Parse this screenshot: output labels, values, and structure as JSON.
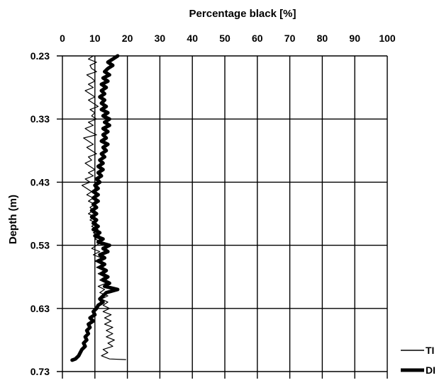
{
  "chart_data": {
    "type": "line",
    "title": "Percentage black [%]",
    "xlabel": "Percentage black [%]",
    "ylabel": "Depth (m)",
    "x_axis_position": "top",
    "y_axis_inverted": true,
    "xlim": [
      0,
      100
    ],
    "ylim": [
      0.23,
      0.73
    ],
    "x_ticks": [
      0,
      10,
      20,
      30,
      40,
      50,
      60,
      70,
      80,
      90,
      100
    ],
    "x_tick_labels": [
      "0",
      "10",
      "20",
      "30",
      "40",
      "50",
      "60",
      "70",
      "80",
      "90",
      "100"
    ],
    "y_ticks": [
      0.23,
      0.33,
      0.43,
      0.53,
      0.63,
      0.73
    ],
    "y_tick_labels": [
      "0.23",
      "0.33",
      "0.43",
      "0.53",
      "0.63",
      "0.73"
    ],
    "grid": true,
    "legend_position": "bottom-right",
    "series": [
      {
        "name": "TI",
        "color": "#000000",
        "style": "thin",
        "points": [
          [
            9.5,
            0.23
          ],
          [
            8.0,
            0.235
          ],
          [
            10.5,
            0.24
          ],
          [
            8.5,
            0.245
          ],
          [
            9.0,
            0.25
          ],
          [
            10.5,
            0.255
          ],
          [
            7.5,
            0.26
          ],
          [
            9.0,
            0.265
          ],
          [
            10.0,
            0.27
          ],
          [
            8.0,
            0.275
          ],
          [
            9.5,
            0.28
          ],
          [
            7.0,
            0.285
          ],
          [
            8.5,
            0.29
          ],
          [
            10.0,
            0.295
          ],
          [
            8.0,
            0.3
          ],
          [
            9.5,
            0.305
          ],
          [
            11.0,
            0.31
          ],
          [
            8.5,
            0.315
          ],
          [
            10.0,
            0.32
          ],
          [
            9.0,
            0.325
          ],
          [
            10.5,
            0.33
          ],
          [
            8.0,
            0.335
          ],
          [
            9.5,
            0.34
          ],
          [
            7.0,
            0.345
          ],
          [
            8.5,
            0.35
          ],
          [
            10.5,
            0.355
          ],
          [
            6.5,
            0.36
          ],
          [
            8.0,
            0.365
          ],
          [
            9.5,
            0.37
          ],
          [
            7.5,
            0.375
          ],
          [
            9.0,
            0.38
          ],
          [
            10.5,
            0.385
          ],
          [
            8.0,
            0.39
          ],
          [
            9.0,
            0.395
          ],
          [
            7.0,
            0.4
          ],
          [
            8.5,
            0.405
          ],
          [
            10.0,
            0.41
          ],
          [
            8.0,
            0.415
          ],
          [
            9.5,
            0.42
          ],
          [
            7.0,
            0.425
          ],
          [
            8.5,
            0.43
          ],
          [
            6.0,
            0.435
          ],
          [
            7.5,
            0.44
          ],
          [
            9.0,
            0.445
          ],
          [
            7.5,
            0.45
          ],
          [
            9.5,
            0.455
          ],
          [
            8.0,
            0.46
          ],
          [
            10.0,
            0.465
          ],
          [
            8.5,
            0.47
          ],
          [
            9.5,
            0.475
          ],
          [
            8.0,
            0.48
          ],
          [
            10.0,
            0.485
          ],
          [
            8.5,
            0.49
          ],
          [
            10.5,
            0.495
          ],
          [
            9.0,
            0.5
          ],
          [
            11.0,
            0.505
          ],
          [
            9.5,
            0.51
          ],
          [
            11.5,
            0.515
          ],
          [
            10.0,
            0.52
          ],
          [
            12.0,
            0.525
          ],
          [
            10.5,
            0.53
          ],
          [
            9.0,
            0.535
          ],
          [
            11.5,
            0.54
          ],
          [
            9.5,
            0.545
          ],
          [
            12.0,
            0.55
          ],
          [
            10.0,
            0.555
          ],
          [
            12.5,
            0.56
          ],
          [
            10.5,
            0.565
          ],
          [
            13.0,
            0.57
          ],
          [
            11.0,
            0.575
          ],
          [
            13.0,
            0.58
          ],
          [
            11.5,
            0.585
          ],
          [
            13.5,
            0.59
          ],
          [
            11.0,
            0.595
          ],
          [
            13.0,
            0.6
          ],
          [
            11.5,
            0.605
          ],
          [
            14.0,
            0.61
          ],
          [
            12.0,
            0.615
          ],
          [
            14.0,
            0.62
          ],
          [
            12.5,
            0.625
          ],
          [
            14.5,
            0.63
          ],
          [
            12.5,
            0.635
          ],
          [
            15.0,
            0.64
          ],
          [
            13.0,
            0.645
          ],
          [
            15.0,
            0.65
          ],
          [
            13.0,
            0.655
          ],
          [
            15.5,
            0.66
          ],
          [
            13.5,
            0.665
          ],
          [
            15.5,
            0.67
          ],
          [
            13.5,
            0.675
          ],
          [
            16.0,
            0.68
          ],
          [
            14.0,
            0.685
          ],
          [
            15.5,
            0.69
          ],
          [
            12.5,
            0.695
          ],
          [
            14.0,
            0.7
          ],
          [
            12.0,
            0.705
          ],
          [
            14.5,
            0.71
          ],
          [
            19.5,
            0.711
          ]
        ]
      },
      {
        "name": "DI",
        "color": "#000000",
        "style": "thick",
        "points": [
          [
            17.0,
            0.23
          ],
          [
            15.5,
            0.235
          ],
          [
            14.0,
            0.24
          ],
          [
            15.5,
            0.245
          ],
          [
            14.0,
            0.25
          ],
          [
            13.0,
            0.255
          ],
          [
            14.5,
            0.26
          ],
          [
            12.5,
            0.265
          ],
          [
            14.0,
            0.27
          ],
          [
            12.0,
            0.275
          ],
          [
            13.5,
            0.28
          ],
          [
            12.0,
            0.285
          ],
          [
            13.0,
            0.29
          ],
          [
            11.5,
            0.295
          ],
          [
            13.0,
            0.3
          ],
          [
            12.0,
            0.305
          ],
          [
            13.5,
            0.31
          ],
          [
            12.0,
            0.315
          ],
          [
            14.0,
            0.32
          ],
          [
            12.5,
            0.325
          ],
          [
            14.5,
            0.33
          ],
          [
            13.0,
            0.335
          ],
          [
            14.5,
            0.34
          ],
          [
            12.5,
            0.345
          ],
          [
            14.0,
            0.35
          ],
          [
            12.5,
            0.355
          ],
          [
            13.5,
            0.36
          ],
          [
            12.0,
            0.365
          ],
          [
            14.0,
            0.37
          ],
          [
            12.5,
            0.375
          ],
          [
            13.5,
            0.38
          ],
          [
            12.0,
            0.385
          ],
          [
            13.0,
            0.39
          ],
          [
            11.5,
            0.395
          ],
          [
            12.5,
            0.4
          ],
          [
            11.0,
            0.405
          ],
          [
            12.5,
            0.41
          ],
          [
            11.0,
            0.415
          ],
          [
            12.0,
            0.42
          ],
          [
            10.5,
            0.425
          ],
          [
            11.5,
            0.43
          ],
          [
            10.0,
            0.435
          ],
          [
            11.0,
            0.44
          ],
          [
            9.5,
            0.445
          ],
          [
            11.0,
            0.45
          ],
          [
            9.5,
            0.455
          ],
          [
            11.0,
            0.46
          ],
          [
            9.5,
            0.465
          ],
          [
            10.5,
            0.47
          ],
          [
            9.0,
            0.475
          ],
          [
            10.5,
            0.48
          ],
          [
            9.0,
            0.485
          ],
          [
            10.5,
            0.49
          ],
          [
            9.5,
            0.495
          ],
          [
            11.0,
            0.5
          ],
          [
            9.5,
            0.505
          ],
          [
            11.5,
            0.51
          ],
          [
            10.0,
            0.515
          ],
          [
            12.5,
            0.52
          ],
          [
            11.0,
            0.525
          ],
          [
            14.5,
            0.53
          ],
          [
            12.5,
            0.535
          ],
          [
            14.0,
            0.54
          ],
          [
            11.5,
            0.545
          ],
          [
            13.0,
            0.55
          ],
          [
            11.0,
            0.555
          ],
          [
            13.0,
            0.56
          ],
          [
            11.5,
            0.565
          ],
          [
            13.5,
            0.57
          ],
          [
            12.0,
            0.575
          ],
          [
            14.0,
            0.58
          ],
          [
            12.5,
            0.585
          ],
          [
            14.5,
            0.59
          ],
          [
            13.0,
            0.595
          ],
          [
            17.0,
            0.6
          ],
          [
            13.5,
            0.605
          ],
          [
            12.5,
            0.61
          ],
          [
            11.5,
            0.615
          ],
          [
            12.5,
            0.62
          ],
          [
            11.0,
            0.625
          ],
          [
            10.5,
            0.63
          ],
          [
            9.5,
            0.635
          ],
          [
            10.0,
            0.64
          ],
          [
            8.5,
            0.645
          ],
          [
            9.5,
            0.65
          ],
          [
            8.0,
            0.655
          ],
          [
            8.5,
            0.66
          ],
          [
            7.5,
            0.665
          ],
          [
            8.0,
            0.67
          ],
          [
            7.0,
            0.675
          ],
          [
            7.5,
            0.68
          ],
          [
            6.5,
            0.685
          ],
          [
            7.0,
            0.69
          ],
          [
            6.0,
            0.695
          ],
          [
            5.5,
            0.7
          ],
          [
            5.0,
            0.705
          ],
          [
            4.0,
            0.71
          ],
          [
            3.0,
            0.712
          ]
        ]
      }
    ]
  },
  "legend": {
    "items": [
      {
        "label": "TI",
        "style": "thin"
      },
      {
        "label": "DI",
        "style": "thick"
      }
    ]
  }
}
